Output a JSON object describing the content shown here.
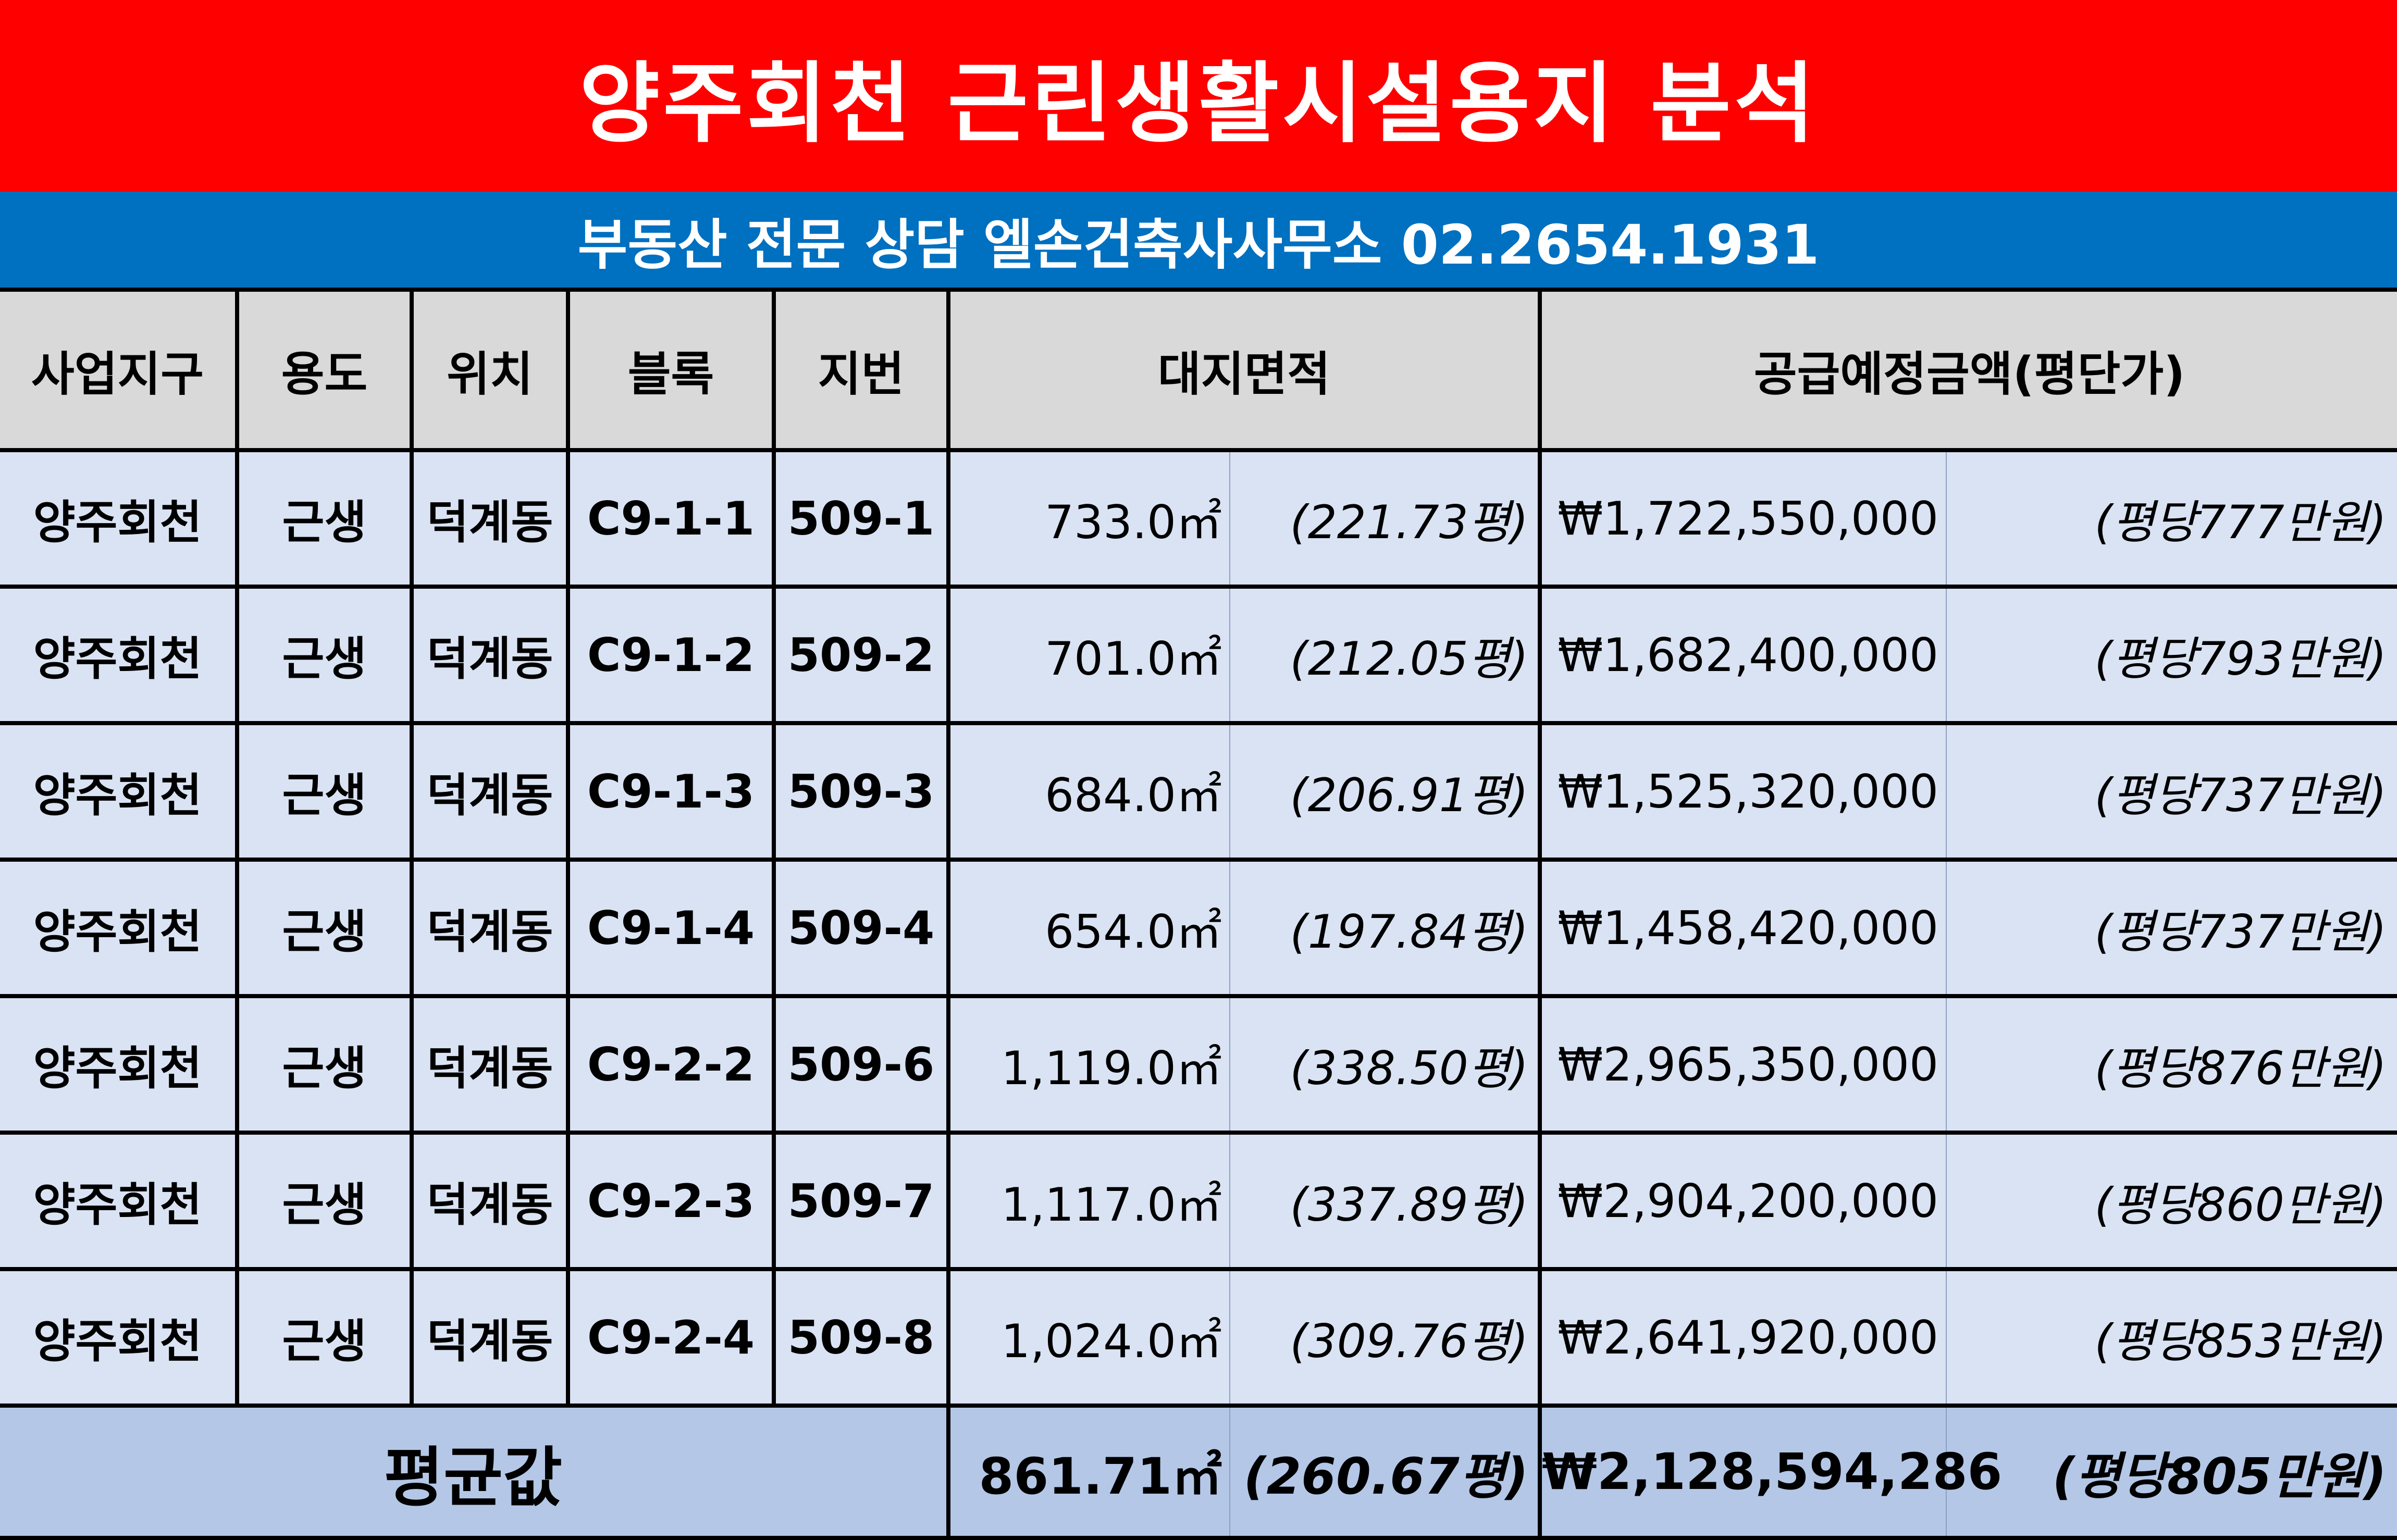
{
  "title": "양주회천 근린생활시설용지 분석",
  "subtitle": "부동산 전문 상담 엘손건축사사무소 02.2654.1931",
  "headers": {
    "district": "사업지구",
    "use": "용도",
    "location": "위치",
    "block": "블록",
    "lot": "지번",
    "land_area": "대지면적",
    "supply_price": "공급예정금액(평단가)"
  },
  "rows": [
    {
      "district": "양주회천",
      "use": "근생",
      "location": "덕계동",
      "block": "C9-1-1",
      "lot": "509-1",
      "area": "733.0㎡",
      "pyeong": "(221.73평)",
      "price": "₩1,722,550,000",
      "unit_price": "(평당777만원)"
    },
    {
      "district": "양주회천",
      "use": "근생",
      "location": "덕계동",
      "block": "C9-1-2",
      "lot": "509-2",
      "area": "701.0㎡",
      "pyeong": "(212.05평)",
      "price": "₩1,682,400,000",
      "unit_price": "(평당793만원)"
    },
    {
      "district": "양주회천",
      "use": "근생",
      "location": "덕계동",
      "block": "C9-1-3",
      "lot": "509-3",
      "area": "684.0㎡",
      "pyeong": "(206.91평)",
      "price": "₩1,525,320,000",
      "unit_price": "(평당737만원)"
    },
    {
      "district": "양주회천",
      "use": "근생",
      "location": "덕계동",
      "block": "C9-1-4",
      "lot": "509-4",
      "area": "654.0㎡",
      "pyeong": "(197.84평)",
      "price": "₩1,458,420,000",
      "unit_price": "(평당737만원)"
    },
    {
      "district": "양주회천",
      "use": "근생",
      "location": "덕계동",
      "block": "C9-2-2",
      "lot": "509-6",
      "area": "1,119.0㎡",
      "pyeong": "(338.50평)",
      "price": "₩2,965,350,000",
      "unit_price": "(평당876만원)"
    },
    {
      "district": "양주회천",
      "use": "근생",
      "location": "덕계동",
      "block": "C9-2-3",
      "lot": "509-7",
      "area": "1,117.0㎡",
      "pyeong": "(337.89평)",
      "price": "₩2,904,200,000",
      "unit_price": "(평당860만원)"
    },
    {
      "district": "양주회천",
      "use": "근생",
      "location": "덕계동",
      "block": "C9-2-4",
      "lot": "509-8",
      "area": "1,024.0㎡",
      "pyeong": "(309.76평)",
      "price": "₩2,641,920,000",
      "unit_price": "(평당853만원)"
    }
  ],
  "average": {
    "label": "평균값",
    "area": "861.71㎡",
    "pyeong": "(260.67평)",
    "price": "₩2,128,594,286",
    "unit_price": "(평당805만원)"
  },
  "colors": {
    "title_bg": "#ff0000",
    "subtitle_bg": "#0070c0",
    "header_bg": "#d9d9d9",
    "row_bg": "#dae3f3",
    "average_bg": "#b4c7e7"
  }
}
